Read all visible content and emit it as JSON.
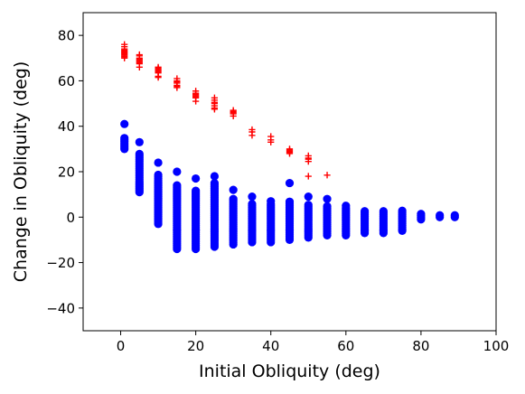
{
  "chart_data": {
    "type": "scatter",
    "title": "",
    "xlabel": "Initial Obliquity (deg)",
    "ylabel": "Change in Obliquity (deg)",
    "xlim": [
      -10,
      100
    ],
    "ylim": [
      -50,
      90
    ],
    "xticks": [
      0,
      20,
      40,
      60,
      80,
      100
    ],
    "yticks": [
      -40,
      -20,
      0,
      20,
      40,
      60,
      80
    ],
    "grid": false,
    "legend": "none",
    "series": [
      {
        "marker": "circle",
        "color": "#0000ff",
        "columns": [
          {
            "x": 1,
            "ymin": 30,
            "ymax": 35,
            "extra": [
              41
            ]
          },
          {
            "x": 5,
            "ymin": 11,
            "ymax": 28,
            "extra": [
              33
            ]
          },
          {
            "x": 10,
            "ymin": -3,
            "ymax": 19,
            "extra": [
              24
            ]
          },
          {
            "x": 15,
            "ymin": -14,
            "ymax": 14,
            "extra": [
              20
            ]
          },
          {
            "x": 20,
            "ymin": -14,
            "ymax": 12,
            "extra": [
              17
            ]
          },
          {
            "x": 25,
            "ymin": -13,
            "ymax": 15,
            "extra": [
              18
            ]
          },
          {
            "x": 30,
            "ymin": -12,
            "ymax": 8,
            "extra": [
              12
            ]
          },
          {
            "x": 35,
            "ymin": -11,
            "ymax": 6,
            "extra": [
              9
            ]
          },
          {
            "x": 40,
            "ymin": -11,
            "ymax": 6,
            "extra": [
              7
            ]
          },
          {
            "x": 45,
            "ymin": -10,
            "ymax": 7,
            "extra": [
              15
            ]
          },
          {
            "x": 50,
            "ymin": -9,
            "ymax": 6,
            "extra": [
              9
            ]
          },
          {
            "x": 55,
            "ymin": -8,
            "ymax": 5,
            "extra": [
              8
            ]
          },
          {
            "x": 60,
            "ymin": -8,
            "ymax": 4,
            "extra": [
              5
            ]
          },
          {
            "x": 65,
            "ymin": -7,
            "ymax": 3,
            "extra": []
          },
          {
            "x": 70,
            "ymin": -7,
            "ymax": 3,
            "extra": []
          },
          {
            "x": 75,
            "ymin": -6,
            "ymax": 3,
            "extra": []
          },
          {
            "x": 80,
            "ymin": -1,
            "ymax": 2,
            "extra": []
          },
          {
            "x": 85,
            "ymin": 0,
            "ymax": 1.5,
            "extra": []
          },
          {
            "x": 89,
            "ymin": 0,
            "ymax": 1.5,
            "extra": []
          }
        ]
      },
      {
        "marker": "plus",
        "color": "#ff0000",
        "points": [
          [
            1,
            76
          ],
          [
            1,
            75
          ],
          [
            1,
            74
          ],
          [
            1,
            73.5
          ],
          [
            1,
            73
          ],
          [
            1,
            72.5
          ],
          [
            1,
            72
          ],
          [
            1,
            71.5
          ],
          [
            1,
            71
          ],
          [
            1,
            70.5
          ],
          [
            1,
            70
          ],
          [
            5,
            71
          ],
          [
            5,
            70
          ],
          [
            5,
            69.5
          ],
          [
            5,
            69
          ],
          [
            5,
            68.5
          ],
          [
            5,
            68
          ],
          [
            5,
            67.5
          ],
          [
            5,
            66
          ],
          [
            5,
            71.5
          ],
          [
            10,
            66
          ],
          [
            10,
            65.5
          ],
          [
            10,
            65
          ],
          [
            10,
            64.5
          ],
          [
            10,
            64
          ],
          [
            10,
            63.5
          ],
          [
            10,
            62
          ],
          [
            10,
            61.5
          ],
          [
            15,
            61
          ],
          [
            15,
            60
          ],
          [
            15,
            59.5
          ],
          [
            15,
            59
          ],
          [
            15,
            58
          ],
          [
            15,
            57.5
          ],
          [
            15,
            57
          ],
          [
            20,
            55.5
          ],
          [
            20,
            54.5
          ],
          [
            20,
            54
          ],
          [
            20,
            53.5
          ],
          [
            20,
            53
          ],
          [
            20,
            52.5
          ],
          [
            20,
            51
          ],
          [
            25,
            52.5
          ],
          [
            25,
            51.5
          ],
          [
            25,
            50.5
          ],
          [
            25,
            50
          ],
          [
            25,
            49
          ],
          [
            25,
            48
          ],
          [
            25,
            47.5
          ],
          [
            30,
            47
          ],
          [
            30,
            46.5
          ],
          [
            30,
            46
          ],
          [
            30,
            45.5
          ],
          [
            30,
            44.5
          ],
          [
            35,
            38.5
          ],
          [
            35,
            37.5
          ],
          [
            35,
            36
          ],
          [
            40,
            35.5
          ],
          [
            40,
            34
          ],
          [
            40,
            33
          ],
          [
            45,
            30
          ],
          [
            45,
            29.5
          ],
          [
            45,
            29
          ],
          [
            45,
            28.5
          ],
          [
            45,
            28
          ],
          [
            50,
            27
          ],
          [
            50,
            26
          ],
          [
            50,
            25.5
          ],
          [
            50,
            24.5
          ],
          [
            50,
            18
          ],
          [
            55,
            18.5
          ]
        ]
      }
    ]
  }
}
